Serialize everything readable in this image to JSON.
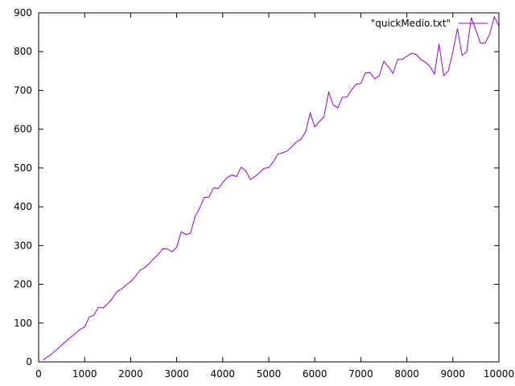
{
  "chart_data": {
    "type": "line",
    "title": "",
    "xlabel": "",
    "ylabel": "",
    "xlim": [
      0,
      10000
    ],
    "ylim": [
      0,
      900
    ],
    "x_ticks": [
      0,
      1000,
      2000,
      3000,
      4000,
      5000,
      6000,
      7000,
      8000,
      9000,
      10000
    ],
    "y_ticks": [
      0,
      100,
      200,
      300,
      400,
      500,
      600,
      700,
      800,
      900
    ],
    "x_tick_labels": [
      "0",
      "1000",
      "2000",
      "3000",
      "4000",
      "5000",
      "6000",
      "7000",
      "8000",
      "9000",
      "10000"
    ],
    "y_tick_labels": [
      "0",
      "100",
      "200",
      "300",
      "400",
      "500",
      "600",
      "700",
      "800",
      "900"
    ],
    "grid": false,
    "legend_position": "top-right",
    "series": [
      {
        "name": "\"quickMedio.txt\"",
        "color": "#9400d3",
        "x": [
          100,
          200,
          300,
          400,
          500,
          600,
          700,
          800,
          900,
          1000,
          1100,
          1200,
          1300,
          1400,
          1500,
          1600,
          1700,
          1800,
          1900,
          2000,
          2100,
          2200,
          2300,
          2400,
          2500,
          2600,
          2700,
          2800,
          2900,
          3000,
          3100,
          3200,
          3300,
          3400,
          3500,
          3600,
          3700,
          3800,
          3900,
          4000,
          4100,
          4200,
          4300,
          4400,
          4500,
          4600,
          4700,
          4800,
          4900,
          5000,
          5100,
          5200,
          5300,
          5400,
          5500,
          5600,
          5700,
          5800,
          5900,
          6000,
          6100,
          6200,
          6300,
          6400,
          6500,
          6600,
          6700,
          6800,
          6900,
          7000,
          7100,
          7200,
          7300,
          7400,
          7500,
          7600,
          7700,
          7800,
          7900,
          8000,
          8100,
          8200,
          8300,
          8400,
          8500,
          8600,
          8700,
          8800,
          8900,
          9000,
          9100,
          9200,
          9300,
          9400,
          9500,
          9600,
          9700,
          9800,
          9900,
          10000
        ],
        "y": [
          5,
          13,
          22,
          32,
          43,
          54,
          64,
          73,
          84,
          90,
          116,
          120,
          141,
          139,
          150,
          163,
          181,
          188,
          198,
          207,
          220,
          236,
          243,
          253,
          266,
          277,
          292,
          291,
          284,
          296,
          336,
          328,
          332,
          375,
          397,
          424,
          425,
          449,
          447,
          462,
          476,
          482,
          478,
          502,
          493,
          470,
          478,
          488,
          499,
          501,
          516,
          536,
          539,
          544,
          555,
          567,
          574,
          593,
          642,
          606,
          620,
          632,
          695,
          663,
          655,
          682,
          683,
          702,
          716,
          718,
          745,
          746,
          730,
          738,
          775,
          761,
          744,
          780,
          780,
          788,
          796,
          793,
          780,
          773,
          762,
          742,
          820,
          738,
          750,
          800,
          860,
          790,
          800,
          888,
          855,
          822,
          822,
          845,
          890,
          866
        ]
      }
    ]
  }
}
